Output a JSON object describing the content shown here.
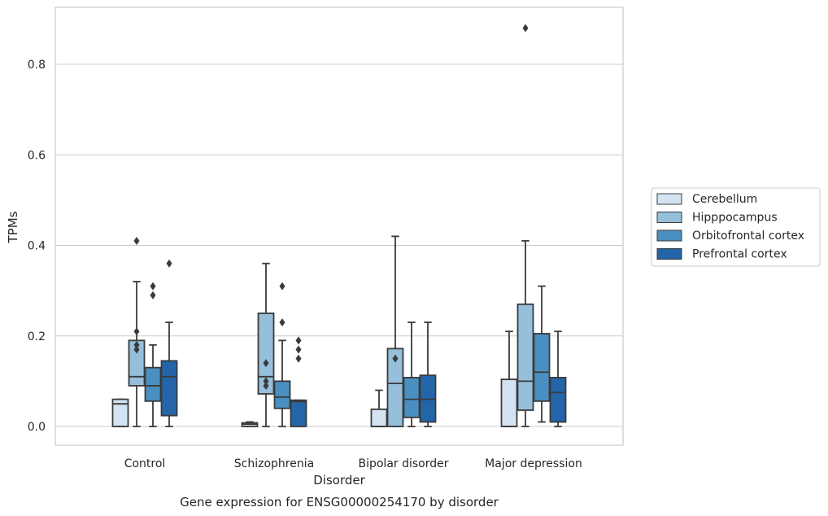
{
  "chart_data": {
    "type": "box",
    "title": "",
    "caption": "Gene expression for ENSG00000254170 by disorder",
    "xlabel": "Disorder",
    "ylabel": "TPMs",
    "ylim": [
      -0.04,
      0.93
    ],
    "yticks": [
      0.0,
      0.2,
      0.4,
      0.6,
      0.8
    ],
    "ytick_labels": [
      "0.0",
      "0.2",
      "0.4",
      "0.6",
      "0.8"
    ],
    "grid": "horizontal",
    "legend_position": "right",
    "categories": [
      "Control",
      "Schizophrenia",
      "Bipolar disorder",
      "Major depression"
    ],
    "series": [
      {
        "name": "Cerebellum",
        "color": "#d4e3f2",
        "boxes": [
          {
            "q1": 0.0,
            "median": 0.05,
            "q3": 0.06,
            "whisker_low": 0.0,
            "whisker_high": 0.06,
            "outliers": []
          },
          {
            "q1": 0.0,
            "median": 0.005,
            "q3": 0.008,
            "whisker_low": 0.0,
            "whisker_high": 0.01,
            "outliers": []
          },
          {
            "q1": 0.0,
            "median": 0.0,
            "q3": 0.038,
            "whisker_low": 0.0,
            "whisker_high": 0.08,
            "outliers": []
          },
          {
            "q1": 0.0,
            "median": 0.0,
            "q3": 0.104,
            "whisker_low": 0.0,
            "whisker_high": 0.21,
            "outliers": []
          }
        ]
      },
      {
        "name": "Hipppocampus",
        "color": "#95bfdb",
        "boxes": [
          {
            "q1": 0.09,
            "median": 0.11,
            "q3": 0.19,
            "whisker_low": 0.0,
            "whisker_high": 0.32,
            "outliers": [
              0.41,
              0.21,
              0.18,
              0.17
            ]
          },
          {
            "q1": 0.072,
            "median": 0.11,
            "q3": 0.25,
            "whisker_low": 0.0,
            "whisker_high": 0.36,
            "outliers": [
              0.14,
              0.1,
              0.09
            ]
          },
          {
            "q1": 0.0,
            "median": 0.095,
            "q3": 0.172,
            "whisker_low": 0.0,
            "whisker_high": 0.42,
            "outliers": [
              0.15
            ]
          },
          {
            "q1": 0.036,
            "median": 0.1,
            "q3": 0.27,
            "whisker_low": 0.0,
            "whisker_high": 0.41,
            "outliers": [
              0.88
            ]
          }
        ]
      },
      {
        "name": "Orbitofrontal cortex",
        "color": "#4a8fc2",
        "boxes": [
          {
            "q1": 0.056,
            "median": 0.09,
            "q3": 0.13,
            "whisker_low": 0.0,
            "whisker_high": 0.18,
            "outliers": [
              0.31,
              0.29
            ]
          },
          {
            "q1": 0.04,
            "median": 0.065,
            "q3": 0.1,
            "whisker_low": 0.0,
            "whisker_high": 0.19,
            "outliers": [
              0.31,
              0.23
            ]
          },
          {
            "q1": 0.02,
            "median": 0.06,
            "q3": 0.108,
            "whisker_low": 0.0,
            "whisker_high": 0.23,
            "outliers": []
          },
          {
            "q1": 0.056,
            "median": 0.12,
            "q3": 0.205,
            "whisker_low": 0.01,
            "whisker_high": 0.31,
            "outliers": []
          }
        ]
      },
      {
        "name": "Prefrontal cortex",
        "color": "#2365a8",
        "boxes": [
          {
            "q1": 0.024,
            "median": 0.11,
            "q3": 0.145,
            "whisker_low": 0.0,
            "whisker_high": 0.23,
            "outliers": [
              0.36
            ]
          },
          {
            "q1": 0.0,
            "median": 0.055,
            "q3": 0.058,
            "whisker_low": 0.0,
            "whisker_high": 0.058,
            "outliers": [
              0.19,
              0.17,
              0.15
            ]
          },
          {
            "q1": 0.01,
            "median": 0.06,
            "q3": 0.113,
            "whisker_low": 0.0,
            "whisker_high": 0.23,
            "outliers": []
          },
          {
            "q1": 0.01,
            "median": 0.075,
            "q3": 0.108,
            "whisker_low": 0.0,
            "whisker_high": 0.21,
            "outliers": []
          }
        ]
      }
    ]
  }
}
